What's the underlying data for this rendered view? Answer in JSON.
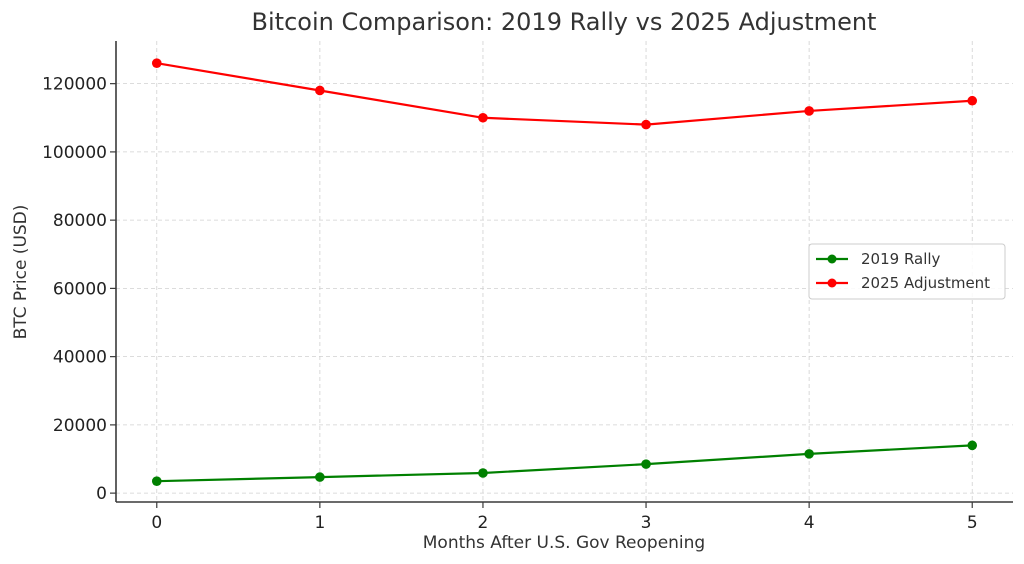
{
  "chart_data": {
    "type": "line",
    "title": "Bitcoin Comparison: 2019 Rally vs 2025 Adjustment",
    "xlabel": "Months After U.S. Gov Reopening",
    "ylabel": "BTC Price (USD)",
    "x": [
      0,
      1,
      2,
      3,
      4,
      5
    ],
    "x_ticks": [
      "0",
      "1",
      "2",
      "3",
      "4",
      "5"
    ],
    "y_ticks": [
      "0",
      "20000",
      "40000",
      "60000",
      "80000",
      "100000",
      "120000"
    ],
    "y_tick_values": [
      0,
      20000,
      40000,
      60000,
      80000,
      100000,
      120000
    ],
    "xlim": [
      -0.25,
      5.25
    ],
    "ylim": [
      -2600,
      132500
    ],
    "grid": true,
    "legend_position": "center-right",
    "series": [
      {
        "name": "2019 Rally",
        "color": "#008000",
        "values": [
          3500,
          4700,
          5900,
          8500,
          11500,
          14000
        ]
      },
      {
        "name": "2025 Adjustment",
        "color": "#ff0000",
        "values": [
          126000,
          118000,
          110000,
          108000,
          112000,
          115000
        ]
      }
    ]
  }
}
